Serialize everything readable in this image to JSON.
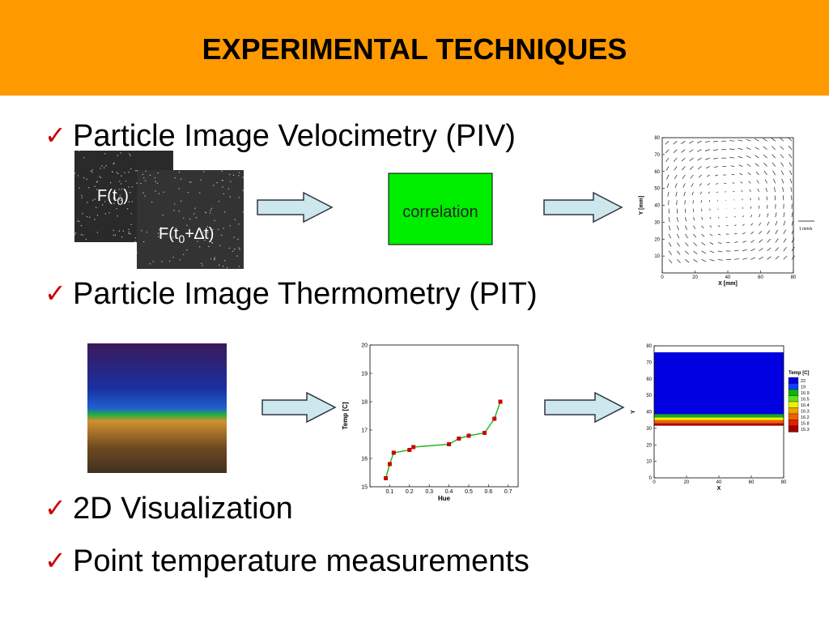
{
  "header": {
    "title": "EXPERIMENTAL TECHNIQUES"
  },
  "bullets": [
    "Particle Image Velocimetry (PIV)",
    "Particle Image Thermometry (PIT)",
    "2D Visualization",
    "Point temperature measurements"
  ],
  "piv": {
    "frame_1": {
      "text": "F(t",
      "sub": "0",
      "end": ")"
    },
    "frame_2": {
      "text": "F(t",
      "sub": "0",
      "end": "+∆t)"
    },
    "correlation": "correlation"
  },
  "velocity_plot": {
    "xlabel": "X [mm]",
    "ylabel": "Y [mm]",
    "xlim": [
      0,
      80
    ],
    "ylim": [
      0,
      80
    ],
    "xticks": [
      0,
      20,
      40,
      60,
      80
    ],
    "yticks": [
      10,
      20,
      30,
      40,
      50,
      60,
      70,
      80
    ],
    "scale_label": "1 mm/s"
  },
  "calibration_plot": {
    "type": "scatter",
    "xlabel": "Hue",
    "ylabel": "Temp [C]",
    "xlim": [
      0,
      0.75
    ],
    "ylim": [
      15,
      20
    ],
    "xticks": [
      0.1,
      0.2,
      0.3,
      0.4,
      0.5,
      0.6,
      0.7
    ],
    "yticks": [
      15,
      16,
      17,
      18,
      19,
      20
    ],
    "x": [
      0.08,
      0.1,
      0.12,
      0.2,
      0.22,
      0.4,
      0.45,
      0.5,
      0.58,
      0.63,
      0.66
    ],
    "y": [
      15.3,
      15.8,
      16.2,
      16.3,
      16.4,
      16.5,
      16.7,
      16.8,
      16.9,
      17.4,
      18
    ],
    "color": "#cc0000",
    "fit_color": "#22bb22"
  },
  "temp_plot": {
    "xlabel": "X",
    "ylabel": "Y",
    "xlim": [
      0,
      80
    ],
    "ylim": [
      0,
      80
    ],
    "xticks": [
      0,
      20,
      40,
      60,
      80
    ],
    "yticks": [
      0,
      10,
      20,
      30,
      40,
      50,
      60,
      70,
      80
    ],
    "legend_title": "Temp [C]",
    "legend": [
      22,
      19,
      16.9,
      16.5,
      16.4,
      16.3,
      16.2,
      15.8,
      15.3
    ],
    "colors": [
      "#0000e0",
      "#1040ff",
      "#10b010",
      "#60e020",
      "#f0f000",
      "#f0a000",
      "#f06000",
      "#e02000",
      "#a00000"
    ]
  }
}
